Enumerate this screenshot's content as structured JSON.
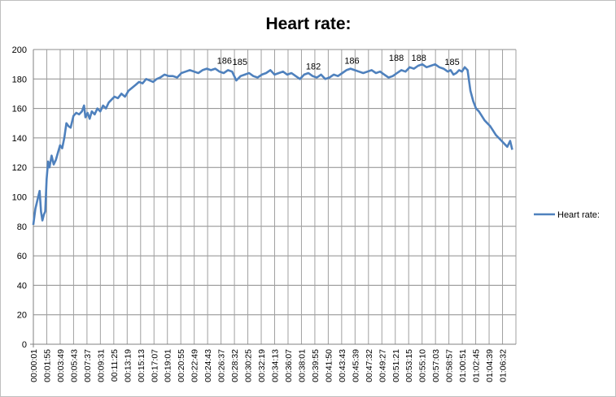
{
  "chart_data": {
    "type": "line",
    "title": "Heart rate:",
    "xlabel": "",
    "ylabel": "",
    "ylim": [
      0,
      200
    ],
    "yticks": [
      0,
      20,
      40,
      60,
      80,
      100,
      120,
      140,
      160,
      180,
      200
    ],
    "grid": true,
    "legend_position": "right",
    "color": "#4f81bd",
    "x_tick_labels": [
      "00:00:01",
      "00:01:55",
      "00:03:49",
      "00:05:43",
      "00:07:37",
      "00:09:31",
      "00:11:25",
      "00:13:19",
      "00:15:13",
      "00:17:07",
      "00:19:01",
      "00:20:55",
      "00:22:49",
      "00:24:43",
      "00:26:37",
      "00:28:32",
      "00:30:25",
      "00:32:19",
      "00:34:13",
      "00:36:07",
      "00:38:01",
      "00:39:55",
      "00:41:50",
      "00:43:43",
      "00:45:39",
      "00:47:32",
      "00:49:27",
      "00:51:21",
      "00:53:15",
      "00:55:10",
      "00:57:03",
      "00:58:57",
      "01:00:51",
      "01:02:45",
      "01:04:39",
      "01:06:32"
    ],
    "series": [
      {
        "name": "Heart rate:",
        "x_minutes": [
          0,
          0.3,
          0.6,
          0.9,
          1.1,
          1.3,
          1.5,
          1.7,
          1.9,
          2.1,
          2.3,
          2.6,
          2.9,
          3.2,
          3.5,
          3.8,
          4.1,
          4.4,
          4.7,
          5.0,
          5.3,
          5.7,
          6.1,
          6.5,
          6.9,
          7.2,
          7.4,
          7.7,
          8.0,
          8.3,
          8.7,
          9.1,
          9.5,
          9.9,
          10.3,
          10.7,
          11.1,
          11.5,
          12.0,
          12.5,
          13.0,
          13.5,
          14.0,
          14.5,
          15.0,
          15.5,
          16.0,
          16.5,
          17.0,
          17.5,
          18.0,
          18.6,
          19.2,
          19.8,
          20.4,
          21.0,
          21.6,
          22.2,
          22.8,
          23.4,
          24.0,
          24.6,
          25.2,
          25.8,
          26.4,
          27.0,
          27.6,
          28.2,
          28.8,
          29.4,
          30.0,
          30.6,
          31.2,
          31.8,
          32.4,
          33.0,
          33.6,
          34.2,
          34.8,
          35.4,
          36.0,
          36.6,
          37.2,
          37.8,
          38.4,
          39.0,
          39.6,
          40.2,
          40.8,
          41.4,
          42.0,
          42.6,
          43.2,
          43.8,
          44.4,
          45.0,
          45.6,
          46.2,
          46.8,
          47.4,
          48.0,
          48.6,
          49.2,
          49.8,
          50.4,
          51.0,
          51.6,
          52.2,
          52.8,
          53.4,
          54.0,
          54.6,
          55.2,
          55.8,
          56.4,
          57.0,
          57.6,
          58.2,
          58.8,
          59.2,
          59.6,
          60.0,
          60.4,
          60.8,
          61.2,
          61.6,
          62.0,
          62.4,
          62.8,
          63.2,
          63.6,
          64.0,
          64.4,
          64.8,
          65.2,
          65.6,
          66.0,
          66.4,
          66.8,
          67.2,
          67.6,
          67.9
        ],
        "values": [
          81,
          92,
          98,
          104,
          90,
          84,
          88,
          90,
          112,
          124,
          120,
          128,
          122,
          125,
          130,
          135,
          133,
          140,
          150,
          148,
          147,
          155,
          157,
          156,
          158,
          162,
          154,
          157,
          153,
          158,
          156,
          160,
          158,
          162,
          160,
          164,
          166,
          168,
          167,
          170,
          168,
          172,
          174,
          176,
          178,
          177,
          180,
          179,
          178,
          180,
          181,
          183,
          182,
          182,
          181,
          184,
          185,
          186,
          185,
          184,
          186,
          187,
          186,
          187,
          185,
          184,
          186,
          185,
          179,
          182,
          183,
          184,
          182,
          181,
          183,
          184,
          186,
          183,
          184,
          185,
          183,
          184,
          182,
          180,
          183,
          184,
          182,
          181,
          183,
          180,
          181,
          183,
          182,
          184,
          186,
          187,
          186,
          185,
          184,
          185,
          186,
          184,
          185,
          183,
          181,
          182,
          184,
          186,
          185,
          188,
          187,
          189,
          190,
          188,
          189,
          190,
          188,
          187,
          185,
          186,
          183,
          184,
          186,
          185,
          188,
          186,
          172,
          165,
          160,
          158,
          155,
          152,
          150,
          148,
          145,
          142,
          140,
          138,
          136,
          134,
          138,
          132
        ]
      }
    ],
    "data_labels": [
      {
        "x_minutes": 27.1,
        "value": 186,
        "text": "186"
      },
      {
        "x_minutes": 29.3,
        "value": 185,
        "text": "185"
      },
      {
        "x_minutes": 39.7,
        "value": 182,
        "text": "182"
      },
      {
        "x_minutes": 45.2,
        "value": 186,
        "text": "186"
      },
      {
        "x_minutes": 51.5,
        "value": 188,
        "text": "188"
      },
      {
        "x_minutes": 54.7,
        "value": 188,
        "text": "188"
      },
      {
        "x_minutes": 59.4,
        "value": 185,
        "text": "185"
      }
    ]
  }
}
